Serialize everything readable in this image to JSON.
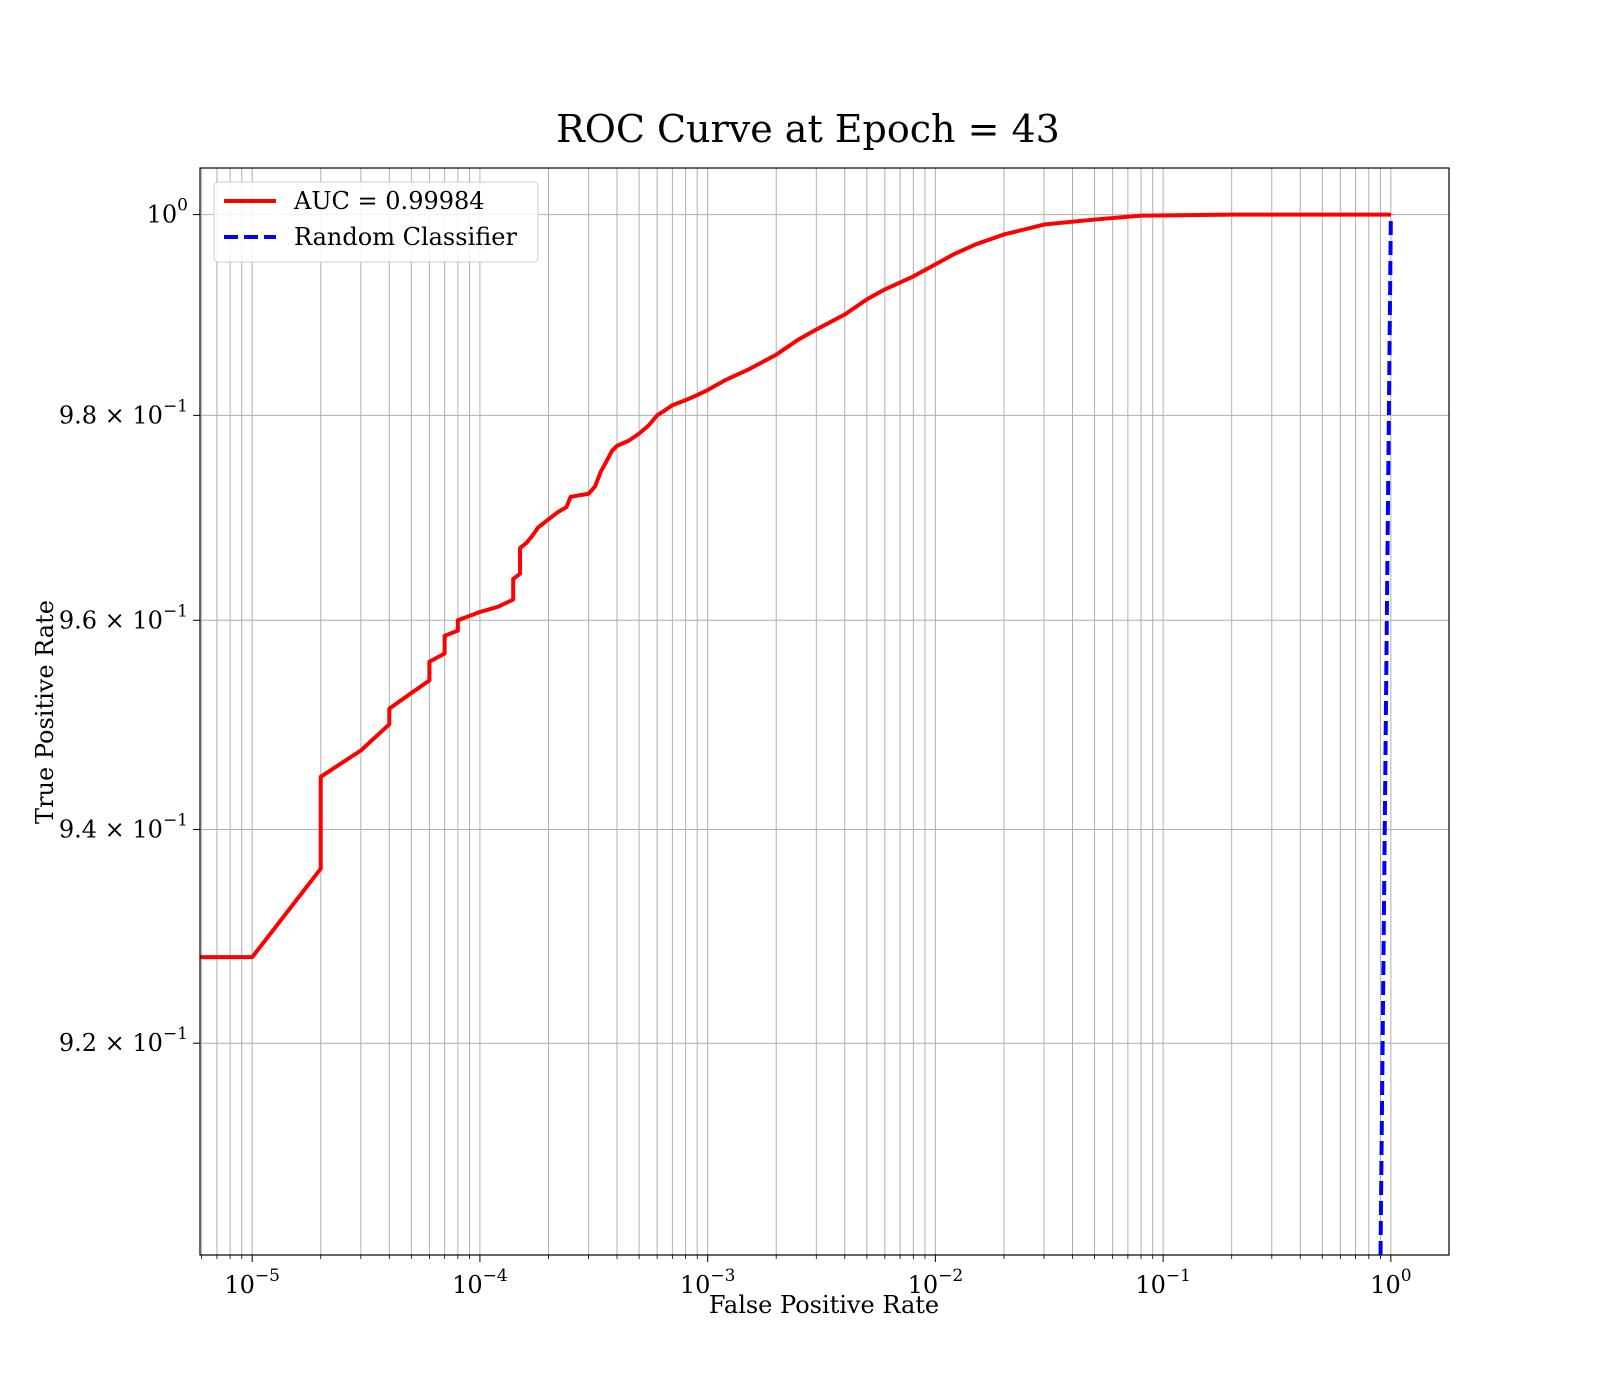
{
  "chart_data": {
    "type": "line",
    "title": "ROC Curve at Epoch = 43",
    "xlabel": "False Positive Rate",
    "ylabel": "True Positive Rate",
    "xscale": "log",
    "yscale": "log",
    "xlim": [
      5.9e-06,
      1.8
    ],
    "ylim": [
      0.9006,
      1.0047
    ],
    "grid": "on (major and minor)",
    "legend_position": "top-left",
    "x_ticks": [
      {
        "value": 1e-05,
        "base": "10",
        "exp": "−5"
      },
      {
        "value": 0.0001,
        "base": "10",
        "exp": "−4"
      },
      {
        "value": 0.001,
        "base": "10",
        "exp": "−3"
      },
      {
        "value": 0.01,
        "base": "10",
        "exp": "−2"
      },
      {
        "value": 0.1,
        "base": "10",
        "exp": "−1"
      },
      {
        "value": 1,
        "base": "10",
        "exp": "0"
      }
    ],
    "y_ticks": [
      {
        "value": 1.0,
        "mantissa": "",
        "base": "10",
        "exp": "0"
      },
      {
        "value": 0.98,
        "mantissa": "9.8 × ",
        "base": "10",
        "exp": "−1"
      },
      {
        "value": 0.96,
        "mantissa": "9.6 × ",
        "base": "10",
        "exp": "−1"
      },
      {
        "value": 0.94,
        "mantissa": "9.4 × ",
        "base": "10",
        "exp": "−1"
      },
      {
        "value": 0.92,
        "mantissa": "9.2 × ",
        "base": "10",
        "exp": "−1"
      }
    ],
    "series": [
      {
        "name": "AUC = 0.99984",
        "color": "#ff0000",
        "style": "solid",
        "x": [
          5.9e-06,
          1e-05,
          2e-05,
          2e-05,
          3e-05,
          4e-05,
          4e-05,
          5e-05,
          6e-05,
          6e-05,
          7e-05,
          7e-05,
          8e-05,
          8e-05,
          0.0001,
          0.00012,
          0.00014,
          0.00014,
          0.00015,
          0.00015,
          0.00016,
          0.00017,
          0.00018,
          0.0002,
          0.00022,
          0.00024,
          0.00025,
          0.0003,
          0.00032,
          0.00034,
          0.00036,
          0.00038,
          0.0004,
          0.00045,
          0.0005,
          0.00055,
          0.0006,
          0.00065,
          0.0007,
          0.0008,
          0.0009,
          0.001,
          0.0012,
          0.0015,
          0.002,
          0.0025,
          0.003,
          0.004,
          0.005,
          0.006,
          0.008,
          0.01,
          0.012,
          0.015,
          0.02,
          0.03,
          0.05,
          0.08,
          0.2,
          0.5,
          1.0
        ],
        "y": [
          0.928,
          0.928,
          0.9363,
          0.945,
          0.9475,
          0.95,
          0.9515,
          0.953,
          0.9542,
          0.956,
          0.9568,
          0.9585,
          0.959,
          0.96,
          0.9608,
          0.9613,
          0.962,
          0.964,
          0.9645,
          0.967,
          0.9675,
          0.9682,
          0.969,
          0.9698,
          0.9705,
          0.971,
          0.972,
          0.9723,
          0.973,
          0.9745,
          0.9755,
          0.9765,
          0.977,
          0.9775,
          0.9782,
          0.979,
          0.98,
          0.9805,
          0.981,
          0.9815,
          0.982,
          0.9825,
          0.9835,
          0.9845,
          0.986,
          0.9875,
          0.9885,
          0.99,
          0.9915,
          0.9925,
          0.9938,
          0.995,
          0.996,
          0.997,
          0.998,
          0.999,
          0.9995,
          0.9999,
          1.0,
          1.0,
          1.0
        ]
      },
      {
        "name": "Random Classifier",
        "color": "#0000ff",
        "style": "dashed",
        "x": [
          0.9006,
          1.0
        ],
        "y": [
          0.9006,
          1.0
        ]
      }
    ]
  }
}
